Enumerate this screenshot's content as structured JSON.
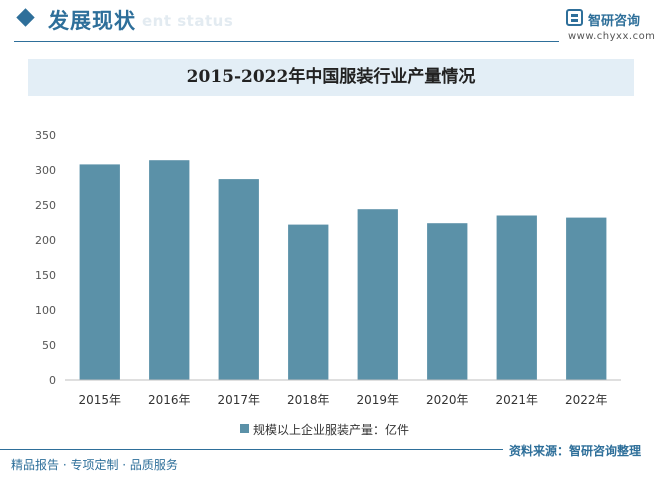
{
  "header": {
    "section_title": "发展现状",
    "section_subtitle": "ent status",
    "logo_text": "智研咨询",
    "logo_url": "www.chyxx.com"
  },
  "footer": {
    "source": "资料来源：智研咨询整理",
    "tags": "精品报告 · 专项定制 · 品质服务"
  },
  "colors": {
    "accent": "#2e6f9a",
    "bar": "#5b91a8",
    "title_band": "#e3eef6"
  },
  "chart_data": {
    "type": "bar",
    "title": "2015-2022年中国服装行业产量情况",
    "categories": [
      "2015年",
      "2016年",
      "2017年",
      "2018年",
      "2019年",
      "2020年",
      "2021年",
      "2022年"
    ],
    "series": [
      {
        "name": "规模以上企业服装产量：亿件",
        "values": [
          308,
          314,
          287,
          222,
          244,
          224,
          235,
          232
        ]
      }
    ],
    "ylim": [
      0,
      350
    ],
    "yticks": [
      0,
      50,
      100,
      150,
      200,
      250,
      300,
      350
    ],
    "grid": false,
    "legend": "bottom"
  }
}
